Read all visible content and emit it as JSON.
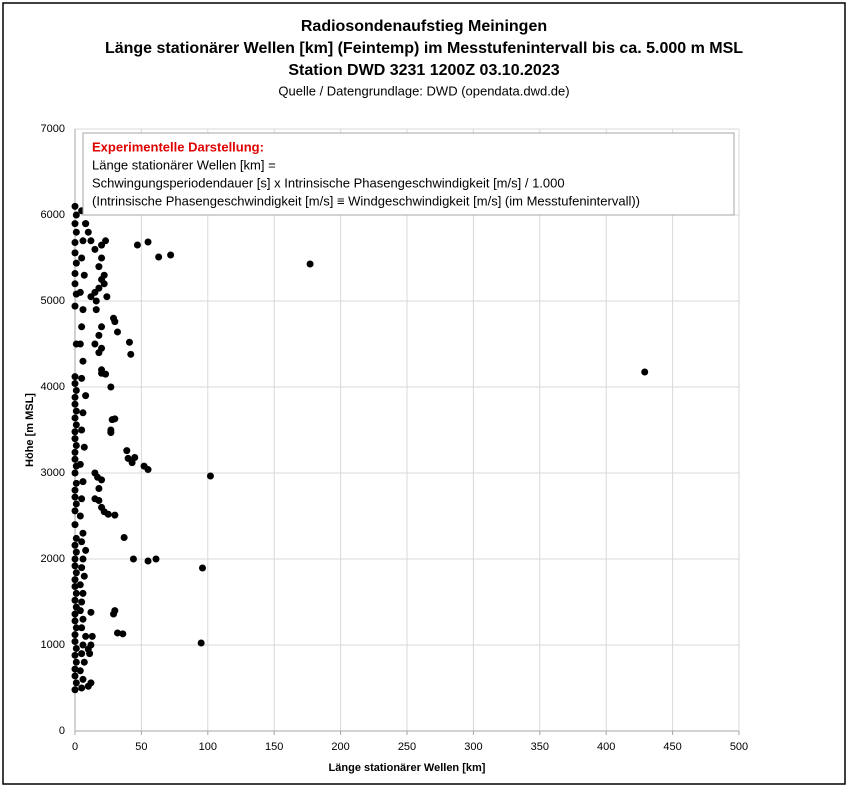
{
  "chart_data": {
    "type": "scatter",
    "title_lines": [
      "Radiosondenaufstieg Meiningen",
      "Länge stationärer Wellen [km] (Feintemp) im Messtufenintervall bis ca. 5.000 m MSL",
      "Station DWD 3231 1200Z 03.10.2023"
    ],
    "source": "Quelle / Datengrundlage: DWD (opendata.dwd.de)",
    "annotation": {
      "heading": "Experimentelle Darstellung:",
      "lines": [
        "Länge stationärer Wellen [km] =",
        "Schwingungsperiodendauer [s] x Intrinsische Phasengeschwindigkeit [m/s]  / 1.000",
        "(Intrinsische Phasengeschwindigkeit [m/s] ≡ Windgeschwindigkeit [m/s] (im Messtufenintervall))"
      ]
    },
    "x_label": "Länge stationärer Wellen [km]",
    "y_label": "Höhe [m MSL]",
    "color": "#000000",
    "grid": true,
    "xlim": [
      0,
      500
    ],
    "ylim": [
      0,
      7000
    ],
    "xticks": [
      0,
      50,
      100,
      150,
      200,
      250,
      300,
      350,
      400,
      450,
      500
    ],
    "yticks": [
      0,
      1000,
      2000,
      3000,
      4000,
      5000,
      6000,
      7000
    ],
    "x": [
      0,
      1,
      0,
      0,
      1,
      0,
      1,
      0,
      0,
      1,
      0,
      0,
      1,
      0,
      1,
      0,
      0,
      1,
      0,
      0,
      1,
      0,
      1,
      0,
      0,
      1,
      0,
      0,
      1,
      0,
      1,
      0,
      0,
      1,
      0,
      0,
      1,
      0,
      1,
      0,
      0,
      1,
      0,
      0,
      1,
      0,
      1,
      0,
      0,
      1,
      0,
      0,
      1,
      0,
      1,
      0,
      5,
      6,
      4,
      7,
      5,
      6,
      8,
      5,
      6,
      4,
      5,
      6,
      4,
      7,
      5,
      6,
      8,
      5,
      6,
      4,
      5,
      6,
      4,
      7,
      5,
      6,
      8,
      5,
      6,
      4,
      5,
      6,
      4,
      7,
      5,
      6,
      8,
      5,
      10,
      12,
      11,
      12,
      13,
      10,
      12,
      15,
      18,
      17,
      20,
      18,
      20,
      22,
      15,
      20,
      18,
      20,
      15,
      18,
      20,
      16,
      12,
      15,
      18,
      20,
      22,
      18,
      20,
      15,
      20,
      23,
      12,
      10,
      8,
      22,
      24,
      16,
      429,
      177,
      102,
      96,
      95,
      72,
      63,
      55,
      47,
      61,
      55,
      44,
      55,
      52,
      45,
      43,
      40,
      39,
      37,
      36,
      32,
      30,
      29,
      25,
      30,
      28,
      30,
      27,
      27,
      27,
      23,
      20,
      42,
      41,
      32,
      30,
      29
    ],
    "y": [
      480,
      560,
      640,
      720,
      800,
      880,
      960,
      1040,
      1120,
      1200,
      1280,
      1360,
      1440,
      1520,
      1600,
      1680,
      1760,
      1840,
      1920,
      2000,
      2080,
      2160,
      2240,
      2400,
      2560,
      2640,
      2720,
      2800,
      2880,
      3000,
      3080,
      3160,
      3240,
      3320,
      3400,
      3480,
      3560,
      3640,
      3720,
      3800,
      3880,
      3960,
      4040,
      4120,
      4500,
      4940,
      5080,
      5200,
      5320,
      5440,
      5560,
      5680,
      5800,
      5900,
      6000,
      6100,
      500,
      600,
      700,
      800,
      900,
      1000,
      1100,
      1200,
      1300,
      1400,
      1500,
      1600,
      1700,
      1800,
      1900,
      2000,
      2100,
      2200,
      2300,
      2500,
      2700,
      2900,
      3100,
      3300,
      3500,
      3700,
      3900,
      4100,
      4300,
      4500,
      4700,
      4900,
      5100,
      5300,
      5500,
      5700,
      5900,
      6050,
      520,
      560,
      900,
      1000,
      1100,
      950,
      1380,
      2700,
      2820,
      2950,
      2920,
      2680,
      2600,
      2550,
      3000,
      4200,
      4400,
      4450,
      4500,
      4600,
      4700,
      4900,
      5050,
      5100,
      5150,
      5250,
      5300,
      5400,
      5500,
      5600,
      5650,
      5700,
      5700,
      5800,
      5900,
      5200,
      5050,
      5000,
      4174,
      5430,
      2965,
      1895,
      1023,
      5535,
      5512,
      5686,
      5651,
      2000,
      1977,
      2000,
      3040,
      3080,
      3180,
      3120,
      3170,
      3260,
      2250,
      1130,
      1140,
      1400,
      1360,
      2520,
      2510,
      3620,
      3630,
      3500,
      3470,
      4000,
      4150,
      4160,
      4380,
      4520,
      4640,
      4760,
      4800
    ]
  }
}
